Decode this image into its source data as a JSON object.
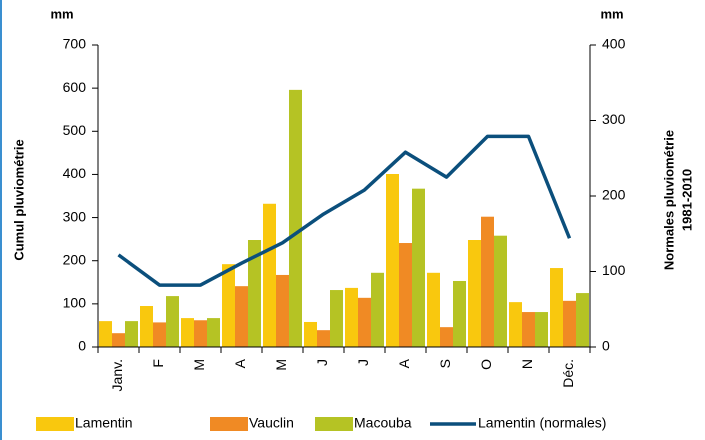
{
  "chart_data": {
    "type": "bar",
    "y_unit": "mm",
    "y2_unit": "mm",
    "ylabel": "Cumul pluviométrie",
    "y2label": [
      "Normales pluviométrie",
      "1981-2010"
    ],
    "categories": [
      "Janv.",
      "F",
      "M",
      "A",
      "M",
      "J",
      "J",
      "A",
      "S",
      "O",
      "N",
      "Déc."
    ],
    "series": [
      {
        "name": "Lamentin",
        "color": "#f9c80e",
        "values": [
          60,
          95,
          67,
          192,
          332,
          58,
          137,
          401,
          172,
          248,
          104,
          183
        ]
      },
      {
        "name": "Vauclin",
        "color": "#f08a24",
        "values": [
          32,
          57,
          62,
          141,
          167,
          39,
          114,
          241,
          46,
          302,
          81,
          107
        ]
      },
      {
        "name": "Macouba",
        "color": "#b5c324",
        "values": [
          60,
          118,
          67,
          248,
          596,
          132,
          172,
          367,
          153,
          258,
          81,
          125
        ]
      },
      {
        "name": "Lamentin (normales)",
        "color": "#0b4f7c",
        "type": "line",
        "axis": "y2",
        "values": [
          122,
          82,
          82,
          111,
          138,
          176,
          208,
          258,
          225,
          279,
          279,
          144
        ]
      }
    ],
    "ylim": [
      0,
      700
    ],
    "yticks": [
      0,
      100,
      200,
      300,
      400,
      500,
      600,
      700
    ],
    "y2lim": [
      0,
      400
    ],
    "y2ticks": [
      0,
      100,
      200,
      300,
      400
    ],
    "legend": "bottom"
  }
}
